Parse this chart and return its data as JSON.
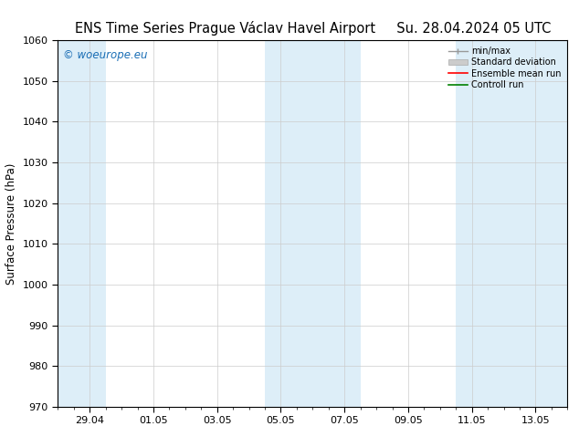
{
  "title_left": "ENS Time Series Prague Václav Havel Airport",
  "title_right": "Su. 28.04.2024 05 UTC",
  "ylabel": "Surface Pressure (hPa)",
  "ylim": [
    970,
    1060
  ],
  "yticks": [
    970,
    980,
    990,
    1000,
    1010,
    1020,
    1030,
    1040,
    1050,
    1060
  ],
  "xtick_labels": [
    "29.04",
    "01.05",
    "03.05",
    "05.05",
    "07.05",
    "09.05",
    "11.05",
    "13.05"
  ],
  "xtick_positions": [
    1,
    3,
    5,
    7,
    9,
    11,
    13,
    15
  ],
  "xlim": [
    0,
    16
  ],
  "shaded_bands": [
    {
      "x_start": 0,
      "x_end": 1.5,
      "color": "#ddeef8"
    },
    {
      "x_start": 6.5,
      "x_end": 9.5,
      "color": "#ddeef8"
    },
    {
      "x_start": 12.5,
      "x_end": 16,
      "color": "#ddeef8"
    }
  ],
  "watermark": "© woeurope.eu",
  "watermark_color": "#1a6eb5",
  "legend_items": [
    {
      "label": "min/max",
      "color": "#aaaaaa"
    },
    {
      "label": "Standard deviation",
      "color": "#cccccc"
    },
    {
      "label": "Ensemble mean run",
      "color": "red"
    },
    {
      "label": "Controll run",
      "color": "green"
    }
  ],
  "bg_color": "#ffffff",
  "plot_bg_color": "#ffffff",
  "grid_color": "#cccccc",
  "title_fontsize": 10.5,
  "axis_fontsize": 8.5,
  "tick_fontsize": 8
}
